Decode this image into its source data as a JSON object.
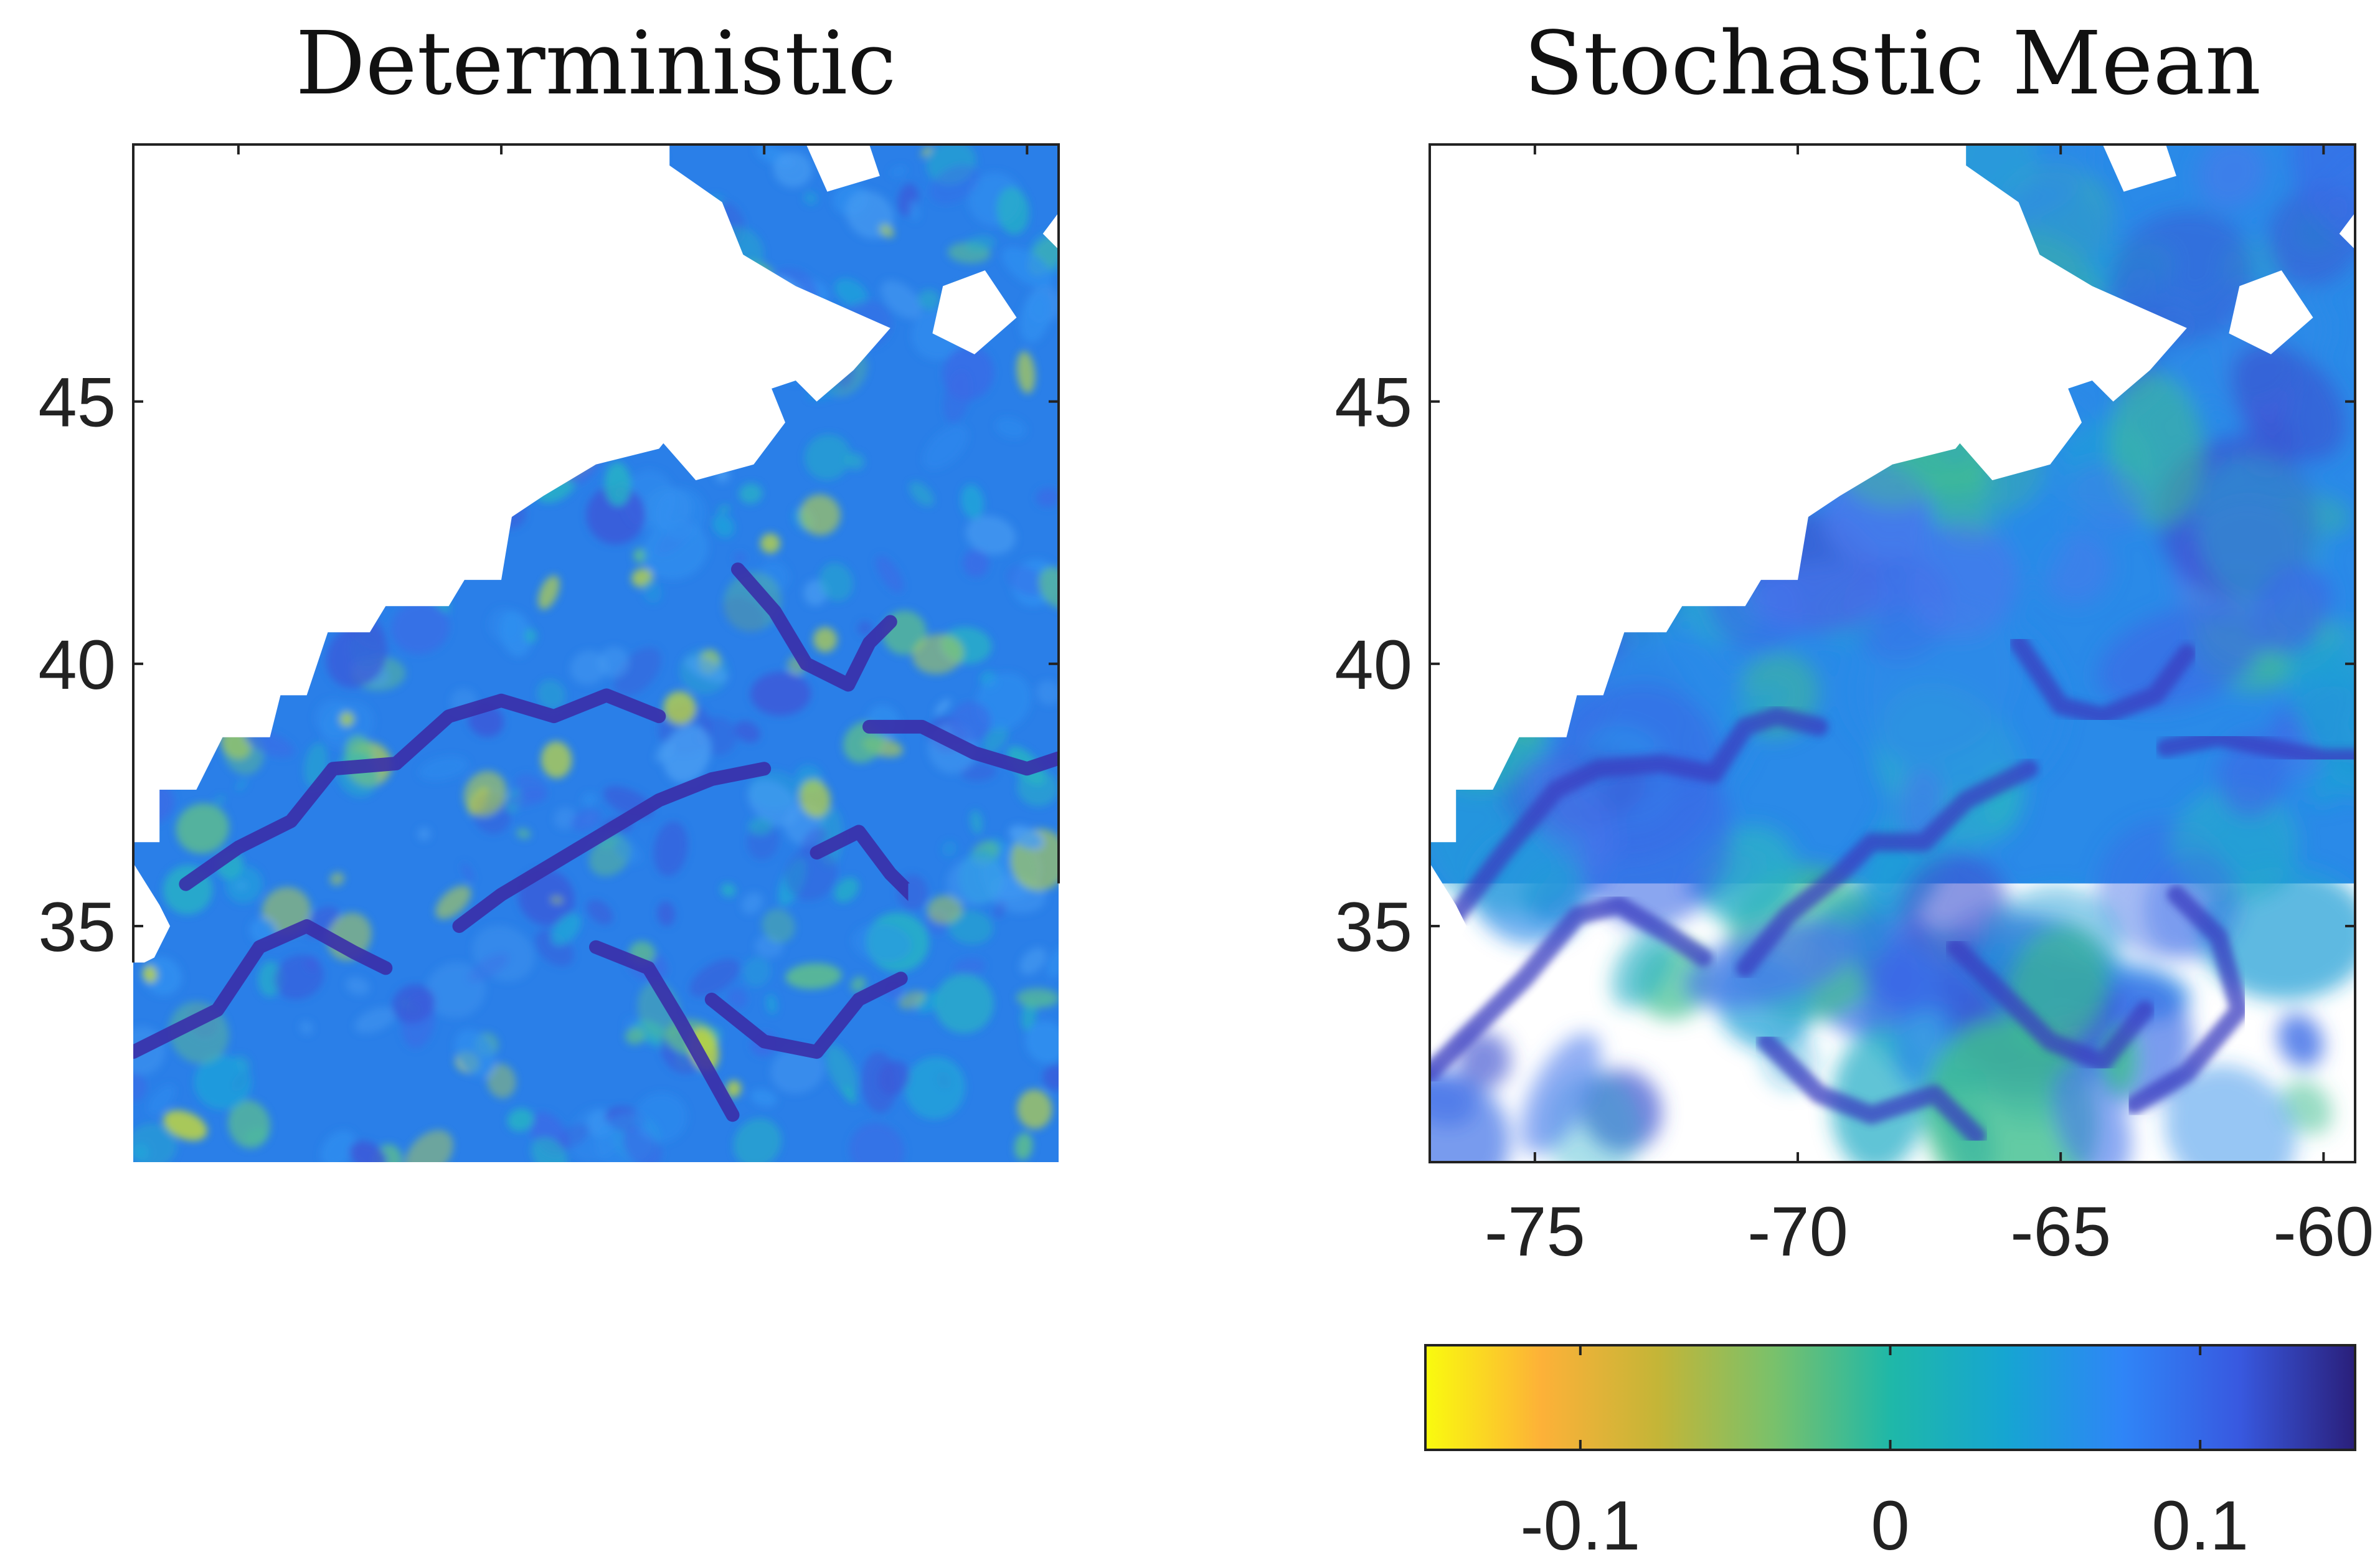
{
  "chart_data": [
    {
      "type": "heatmap",
      "title": "Deterministic",
      "xlabel": "",
      "ylabel": "",
      "xlim": [
        -77,
        -59.4
      ],
      "ylim": [
        30.5,
        49.9
      ],
      "xticks": [
        -75,
        -70,
        -65,
        -60
      ],
      "xtick_labels": [
        "-75",
        "-70",
        "-65",
        "-60"
      ],
      "yticks": [
        35,
        40,
        45
      ],
      "ytick_labels": [
        "35",
        "40",
        "45"
      ],
      "colorbar": {
        "orientation": "horizontal",
        "location": "below",
        "range": [
          -0.15,
          0.15
        ],
        "ticks": [
          -0.1,
          0,
          0.1
        ],
        "tick_labels": [
          "-0.1",
          "0",
          "0.1"
        ],
        "colormap": "parula (reversed)",
        "colors": [
          "#f9fb0e",
          "#fdb138",
          "#c4b537",
          "#79c16b",
          "#1fb8a8",
          "#16a5d2",
          "#2f85f7",
          "#3859e0",
          "#2a1f7a"
        ]
      },
      "field_description_colors": {
        "background": "#2a7fe8",
        "streak": "#3a2fa8",
        "highlight": "#c4d83a",
        "mask": "#ffffff"
      }
    },
    {
      "type": "heatmap",
      "title": "Stochastic Mean",
      "xlabel": "",
      "ylabel": "",
      "xlim": [
        -77,
        -59.4
      ],
      "ylim": [
        30.5,
        49.9
      ],
      "xticks": [
        -75,
        -70,
        -65,
        -60
      ],
      "xtick_labels": [
        "-75",
        "-70",
        "-65",
        "-60"
      ],
      "yticks": [
        35,
        40,
        45
      ],
      "ytick_labels": [
        "35",
        "40",
        "45"
      ],
      "colorbar": {
        "orientation": "horizontal",
        "location": "below",
        "range": [
          -0.15,
          0.15
        ],
        "ticks": [
          -0.1,
          0,
          0.1
        ],
        "tick_labels": [
          "-0.1",
          "0",
          "0.1"
        ],
        "colormap": "parula (reversed)",
        "colors": [
          "#f9fb0e",
          "#fdb138",
          "#c4b537",
          "#79c16b",
          "#1fb8a8",
          "#16a5d2",
          "#2f85f7",
          "#3859e0",
          "#2a1f7a"
        ]
      },
      "field_description_colors": {
        "background": "#2a8ae8",
        "streak": "#3b3cc0",
        "highlight": "#3fbf90",
        "mask": "#ffffff"
      }
    }
  ]
}
